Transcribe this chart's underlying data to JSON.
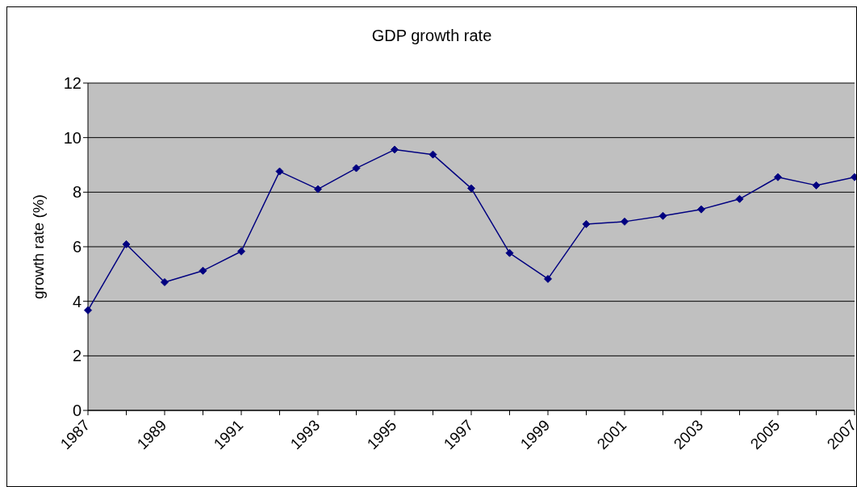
{
  "chart_data": {
    "type": "line",
    "title": "GDP growth rate",
    "ylabel": "growth rate (%)",
    "categories": [
      "1987",
      null,
      "1989",
      null,
      "1991",
      null,
      "1993",
      null,
      "1995",
      null,
      "1997",
      null,
      "1999",
      null,
      "2001",
      null,
      "2003",
      null,
      "2005",
      null,
      "2007"
    ],
    "series": [
      {
        "color": "#000080",
        "values": [
          3.67,
          6.09,
          4.7,
          5.12,
          5.83,
          8.76,
          8.11,
          8.88,
          9.56,
          9.38,
          8.14,
          5.77,
          4.82,
          6.83,
          6.92,
          7.13,
          7.37,
          7.75,
          8.55,
          8.25,
          8.55
        ]
      }
    ],
    "ylim": [
      0,
      12
    ],
    "yticks": [
      0,
      2,
      4,
      6,
      8,
      10,
      12
    ],
    "grid": "y",
    "legend": false,
    "marker": "diamond",
    "line_style": "solid"
  }
}
